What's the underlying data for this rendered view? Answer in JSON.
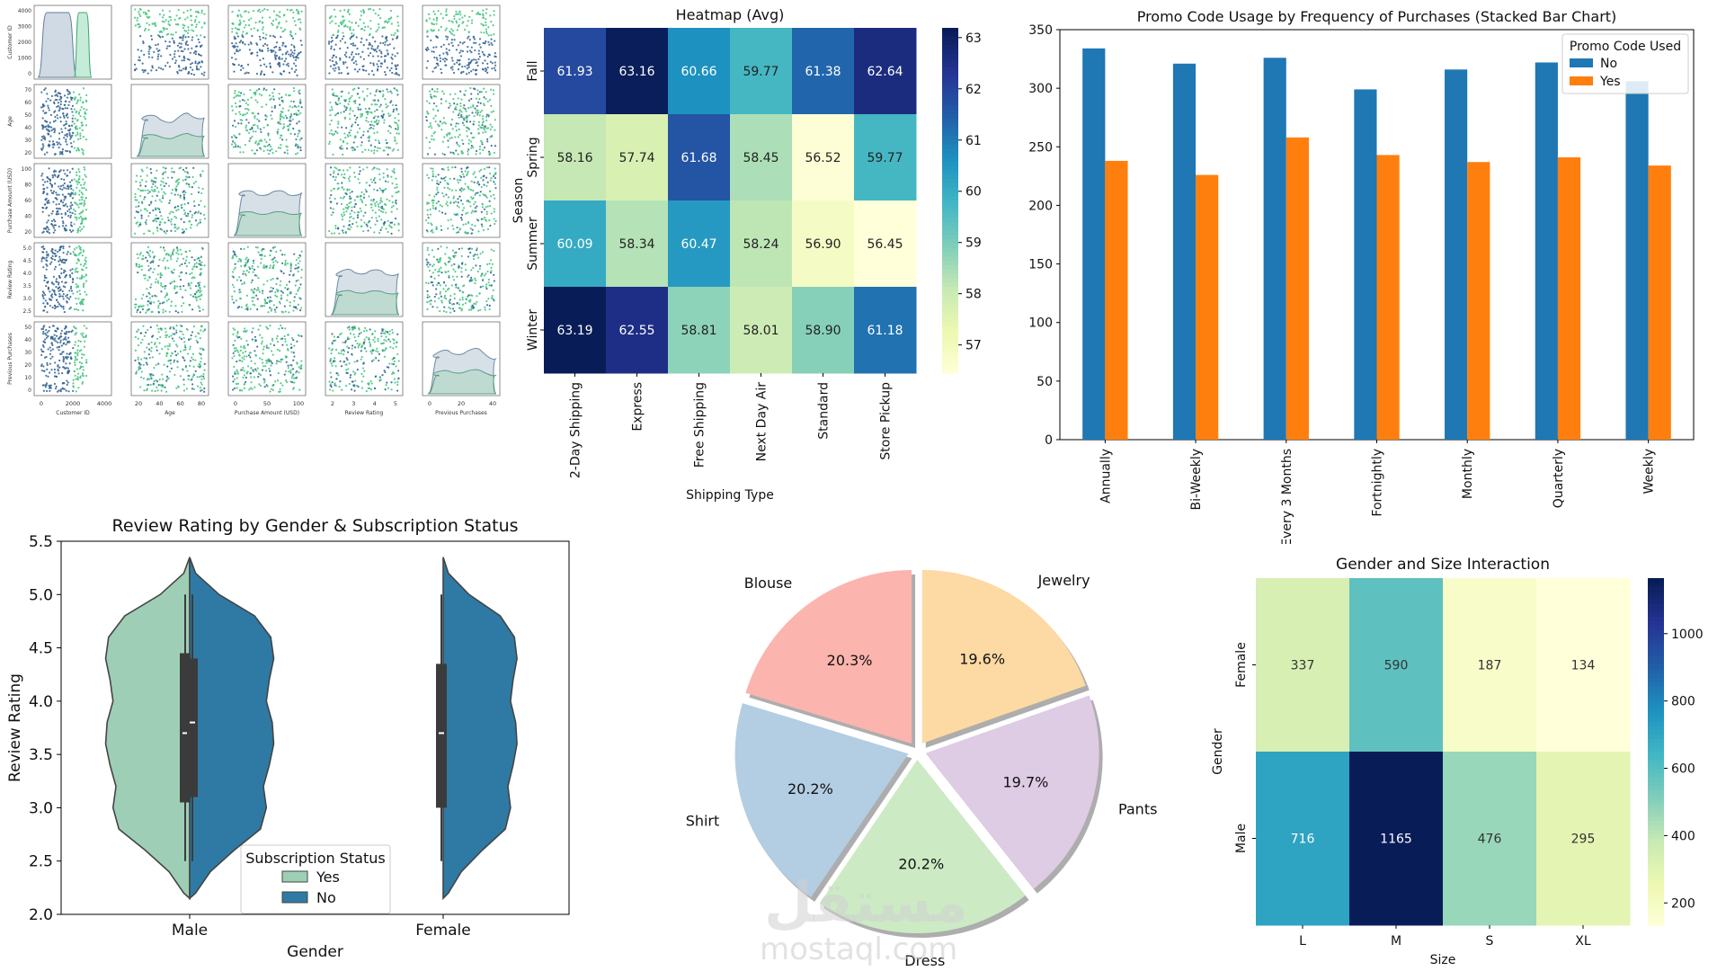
{
  "chart_data": [
    {
      "id": "pairplot",
      "type": "scatter",
      "title": "",
      "variables": [
        "Customer ID",
        "Age",
        "Purchase Amount (USD)",
        "Review Rating",
        "Previous Purchases"
      ],
      "hue_colors": [
        "#2e5f8f",
        "#3fc27d"
      ],
      "tick_labels": {
        "Customer ID": [
          "0",
          "2000",
          "4000"
        ],
        "Age": [
          "20",
          "40",
          "60",
          "80"
        ],
        "Purchase Amount (USD)": [
          "0",
          "50",
          "100"
        ],
        "Review Rating": [
          "2",
          "3",
          "4",
          "5"
        ],
        "Previous Purchases": [
          "0",
          "20",
          "40"
        ]
      },
      "y_tick_labels": {
        "Customer ID": [
          "0",
          "1000",
          "2000",
          "3000",
          "4000"
        ],
        "Age": [
          "20",
          "30",
          "40",
          "50",
          "60",
          "70"
        ],
        "Purchase Amount (USD)": [
          "20",
          "40",
          "60",
          "80",
          "100"
        ],
        "Review Rating": [
          "2.5",
          "3.0",
          "3.5",
          "4.0",
          "4.5",
          "5.0"
        ],
        "Previous Purchases": [
          "0",
          "10",
          "20",
          "30",
          "40",
          "50"
        ]
      }
    },
    {
      "id": "season-shipping-heatmap",
      "type": "heatmap",
      "title": "Heatmap (Avg)",
      "xlabel": "Shipping Type",
      "ylabel": "Season",
      "x": [
        "2-Day Shipping",
        "Express",
        "Free Shipping",
        "Next Day Air",
        "Standard",
        "Store Pickup"
      ],
      "y": [
        "Fall",
        "Spring",
        "Summer",
        "Winter"
      ],
      "values": [
        [
          61.93,
          63.16,
          60.66,
          59.77,
          61.38,
          62.64
        ],
        [
          58.16,
          57.74,
          61.68,
          58.45,
          56.52,
          59.77
        ],
        [
          60.09,
          58.34,
          60.47,
          58.24,
          56.9,
          56.45
        ],
        [
          63.19,
          62.55,
          58.81,
          58.01,
          58.9,
          61.18
        ]
      ],
      "value_labels": [
        [
          "61.93",
          "63.16",
          "60.66",
          "59.77",
          "61.38",
          "62.64"
        ],
        [
          "58.16",
          "57.74",
          "61.68",
          "58.45",
          "56.52",
          "59.77"
        ],
        [
          "60.09",
          "58.34",
          "60.47",
          "58.24",
          "56.90",
          "56.45"
        ],
        [
          "63.19",
          "62.55",
          "58.81",
          "58.01",
          "58.90",
          "61.18"
        ]
      ],
      "colormap": "YlGnBu",
      "vmin": 56.45,
      "vmax": 63.19,
      "colorbar_ticks": [
        "57",
        "58",
        "59",
        "60",
        "61",
        "62",
        "63"
      ]
    },
    {
      "id": "promo-bar",
      "type": "bar",
      "title": "Promo Code Usage by Frequency of Purchases (Stacked Bar Chart)",
      "xlabel": "",
      "ylabel": "",
      "categories": [
        "Annually",
        "Bi-Weekly",
        "Every 3 Months",
        "Fortnightly",
        "Monthly",
        "Quarterly",
        "Weekly"
      ],
      "series": [
        {
          "name": "No",
          "color": "#1f77b4",
          "values": [
            334,
            321,
            326,
            299,
            316,
            322,
            306
          ]
        },
        {
          "name": "Yes",
          "color": "#ff7f0e",
          "values": [
            238,
            226,
            258,
            243,
            237,
            241,
            234
          ]
        }
      ],
      "legend_title": "Promo Code Used",
      "legend_position": "top-right",
      "ylim": [
        0,
        350
      ],
      "yticks": [
        "0",
        "50",
        "100",
        "150",
        "200",
        "250",
        "300",
        "350"
      ]
    },
    {
      "id": "rating-violin",
      "type": "violin",
      "title": "Review Rating by Gender & Subscription Status",
      "xlabel": "Gender",
      "ylabel": "Review Rating",
      "categories": [
        "Male",
        "Female"
      ],
      "series": [
        {
          "name": "Yes",
          "color": "#9ecfb6"
        },
        {
          "name": "No",
          "color": "#2e7aa5"
        }
      ],
      "legend_title": "Subscription Status",
      "legend_position": "bottom-center",
      "ylim": [
        2.0,
        5.5
      ],
      "yticks": [
        "2.0",
        "2.5",
        "3.0",
        "3.5",
        "4.0",
        "4.5",
        "5.0",
        "5.5"
      ],
      "medians": {
        "Male-Yes": 3.7,
        "Male-No": 3.8,
        "Female-No": 3.7
      }
    },
    {
      "id": "category-pie",
      "type": "pie",
      "title": "",
      "labels": [
        "Jewelry",
        "Pants",
        "Dress",
        "Shirt",
        "Blouse"
      ],
      "values": [
        19.6,
        19.7,
        20.2,
        20.2,
        20.3
      ],
      "value_labels": [
        "19.6%",
        "19.7%",
        "20.2%",
        "20.2%",
        "20.3%"
      ],
      "colors": [
        "#fdd9a4",
        "#decbe4",
        "#ccebc5",
        "#b3cde3",
        "#fbb4ae"
      ]
    },
    {
      "id": "gender-size-heatmap",
      "type": "heatmap",
      "title": "Gender and Size Interaction",
      "xlabel": "Size",
      "ylabel": "Gender",
      "x": [
        "L",
        "M",
        "S",
        "XL"
      ],
      "y": [
        "Female",
        "Male"
      ],
      "values": [
        [
          337,
          590,
          187,
          134
        ],
        [
          716,
          1165,
          476,
          295
        ]
      ],
      "value_labels": [
        [
          "337",
          "590",
          "187",
          "134"
        ],
        [
          "716",
          "1165",
          "476",
          "295"
        ]
      ],
      "colormap": "YlGnBu",
      "vmin": 134,
      "vmax": 1165,
      "colorbar_ticks": [
        "200",
        "400",
        "600",
        "800",
        "1000"
      ]
    }
  ],
  "watermark": {
    "text_ar": "مستقل",
    "text_en": "mostaql.com"
  }
}
